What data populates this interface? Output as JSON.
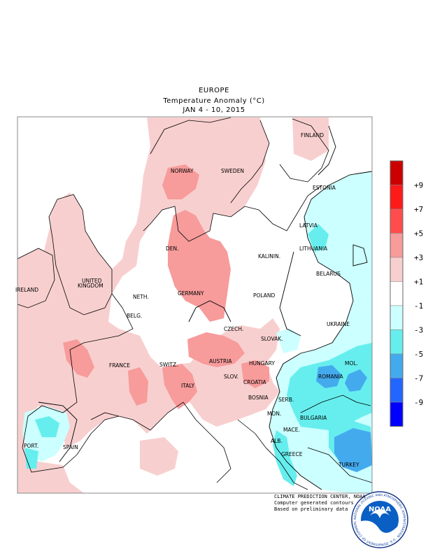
{
  "header": {
    "region": "EUROPE",
    "quantity": "Temperature Anomaly (°C)",
    "period": "JAN 4 - 10, 2015"
  },
  "legend": {
    "bins": [
      {
        "color": "#cc0000",
        "label": ""
      },
      {
        "color": "#ff1a1a",
        "label": "+9"
      },
      {
        "color": "#ff4d4d",
        "label": "+7"
      },
      {
        "color": "#f79b9b",
        "label": "+5"
      },
      {
        "color": "#f8cfcf",
        "label": "+3"
      },
      {
        "color": "#ffffff",
        "label": "+1"
      },
      {
        "color": "#ccffff",
        "label": "-1"
      },
      {
        "color": "#66eeee",
        "label": "-3"
      },
      {
        "color": "#44aaee",
        "label": "-5"
      },
      {
        "color": "#2266ff",
        "label": "-7"
      },
      {
        "color": "#0000ff",
        "label": "-9"
      }
    ]
  },
  "countries": [
    {
      "name": "FINLAND"
    },
    {
      "name": "NORWAY"
    },
    {
      "name": "SWEDEN"
    },
    {
      "name": "ESTONIA"
    },
    {
      "name": "LATVIA"
    },
    {
      "name": "LITHUANIA"
    },
    {
      "name": "DEN."
    },
    {
      "name": "KALININ."
    },
    {
      "name": "UNITED"
    },
    {
      "name": "KINGDOM"
    },
    {
      "name": "IRELAND"
    },
    {
      "name": "BELARUS"
    },
    {
      "name": "NETH."
    },
    {
      "name": "GERMANY"
    },
    {
      "name": "POLAND"
    },
    {
      "name": "BELG."
    },
    {
      "name": "UKRAINE"
    },
    {
      "name": "CZECH."
    },
    {
      "name": "SLOVAK."
    },
    {
      "name": "FRANCE"
    },
    {
      "name": "SWITZ."
    },
    {
      "name": "AUSTRIA"
    },
    {
      "name": "HUNGARY"
    },
    {
      "name": "MOL."
    },
    {
      "name": "ROMANIA"
    },
    {
      "name": "SLOV."
    },
    {
      "name": "CROATIA"
    },
    {
      "name": "ITALY"
    },
    {
      "name": "BOSNIA"
    },
    {
      "name": "SERB."
    },
    {
      "name": "MON."
    },
    {
      "name": "BULGARIA"
    },
    {
      "name": "PORT."
    },
    {
      "name": "SPAIN"
    },
    {
      "name": "MACE."
    },
    {
      "name": "ALB."
    },
    {
      "name": "GREECE"
    },
    {
      "name": "TURKEY"
    }
  ],
  "credits": {
    "line1": "CLIMATE PREDICTION CENTER, NOAA",
    "line2": "Computer generated contours",
    "line3": "Based on preliminary data"
  },
  "logo": {
    "text": "NOAA",
    "ring_text": "NATIONAL OCEANIC AND ATMOSPHERIC ADMINISTRATION · U.S. DEPARTMENT OF COMMERCE"
  }
}
